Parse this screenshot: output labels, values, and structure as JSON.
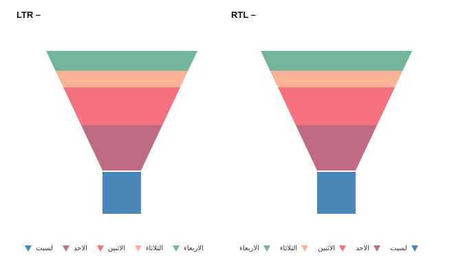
{
  "chart_data": [
    {
      "type": "funnel",
      "title": "LTR –",
      "direction": "ltr",
      "categories": [
        "الاربعاء",
        "الثلاثاء",
        "الاثنين",
        "الاحد",
        "لسبت"
      ],
      "values": [
        100,
        82,
        64,
        40,
        25
      ],
      "colors": [
        "#72b59a",
        "#f7b393",
        "#f6717f",
        "#c06982",
        "#4a86b9"
      ],
      "legend": {
        "position": "bottom",
        "entries": [
          "لسبت",
          "الاحد",
          "الاثنين",
          "الثلاثاء",
          "الاربعاء"
        ],
        "colors": [
          "#4a86b9",
          "#c06982",
          "#f6717f",
          "#f7b393",
          "#72b59a"
        ]
      }
    },
    {
      "type": "funnel",
      "title": "RTL –",
      "direction": "rtl",
      "categories": [
        "الاربعاء",
        "الثلاثاء",
        "الاثنين",
        "الاحد",
        "لسبت"
      ],
      "values": [
        100,
        82,
        64,
        40,
        25
      ],
      "colors": [
        "#72b59a",
        "#f7b393",
        "#f6717f",
        "#c06982",
        "#4a86b9"
      ],
      "legend": {
        "position": "bottom",
        "entries": [
          "الاربعاء",
          "الثلاثاء",
          "الاثنين",
          "الاحد",
          "لسبت"
        ],
        "colors": [
          "#72b59a",
          "#f7b393",
          "#f6717f",
          "#c06982",
          "#4a86b9"
        ]
      }
    }
  ]
}
